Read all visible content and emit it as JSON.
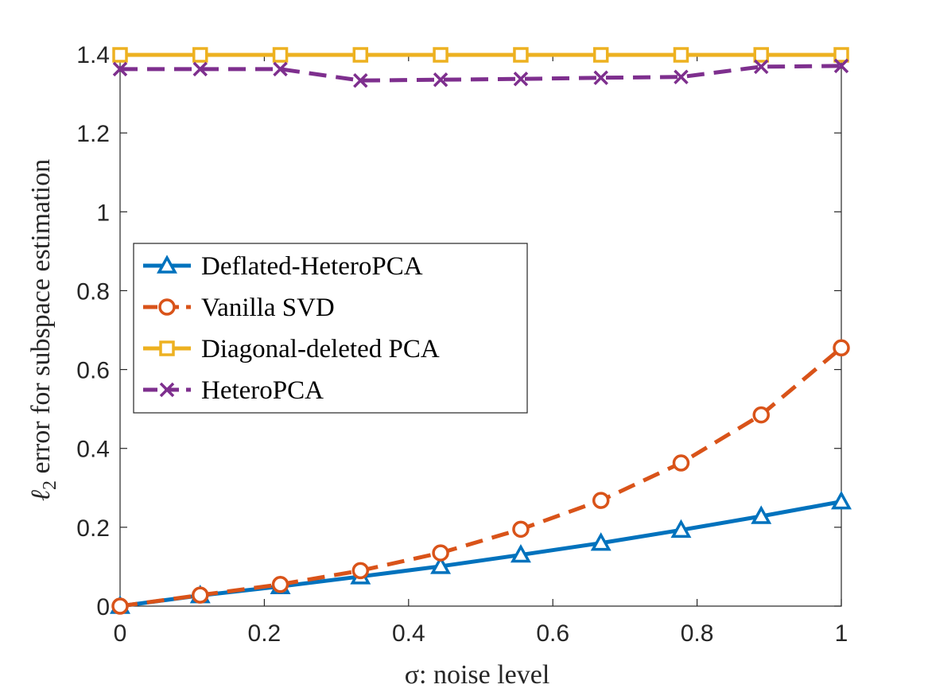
{
  "chart_data": {
    "type": "line",
    "title": "",
    "xlabel": "σ: noise level",
    "ylabel": "ℓ2 error for subspace estimation",
    "ylabel_main": "ℓ",
    "ylabel_sub": "2",
    "ylabel_rest": " error for subspace estimation",
    "xlim": [
      0,
      1
    ],
    "ylim": [
      0,
      1.4
    ],
    "xticks": [
      "0",
      "0.2",
      "0.4",
      "0.6",
      "0.8",
      "1"
    ],
    "yticks": [
      "0",
      "0.2",
      "0.4",
      "0.6",
      "0.8",
      "1",
      "1.2",
      "1.4"
    ],
    "x": [
      0,
      0.1111,
      0.2222,
      0.3333,
      0.4444,
      0.5556,
      0.6667,
      0.7778,
      0.8889,
      1.0
    ],
    "legend_position": "center-left",
    "series": [
      {
        "name": "Deflated-HeteroPCA",
        "color": "#0072BD",
        "line": "solid",
        "marker": "triangle",
        "values": [
          0.0,
          0.027,
          0.05,
          0.075,
          0.101,
          0.13,
          0.16,
          0.193,
          0.228,
          0.265
        ]
      },
      {
        "name": "Vanilla SVD",
        "color": "#D95319",
        "line": "dashed",
        "marker": "circle",
        "values": [
          0.0,
          0.028,
          0.055,
          0.09,
          0.135,
          0.195,
          0.268,
          0.363,
          0.485,
          0.655
        ]
      },
      {
        "name": "Diagonal-deleted PCA",
        "color": "#EDB120",
        "line": "solid",
        "marker": "square",
        "values": [
          1.398,
          1.398,
          1.398,
          1.398,
          1.398,
          1.398,
          1.398,
          1.398,
          1.398,
          1.398
        ]
      },
      {
        "name": "HeteroPCA",
        "color": "#7E2F8E",
        "line": "dashed",
        "marker": "x",
        "values": [
          1.362,
          1.362,
          1.362,
          1.333,
          1.335,
          1.337,
          1.34,
          1.342,
          1.368,
          1.37
        ]
      }
    ]
  }
}
